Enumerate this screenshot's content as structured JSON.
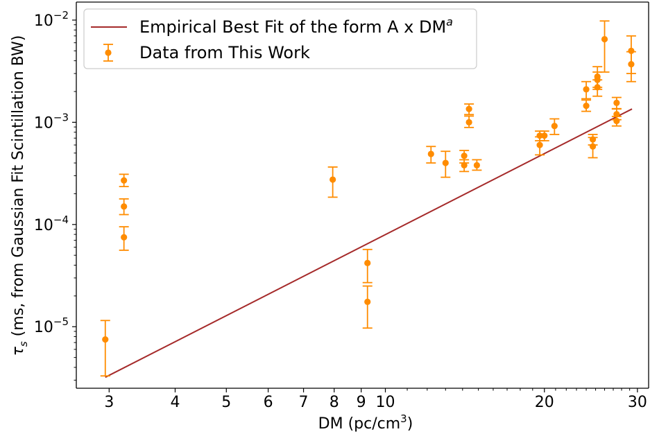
{
  "chart_data": {
    "type": "scatter",
    "xscale": "log",
    "yscale": "log",
    "xlim": [
      2.6,
      31.5
    ],
    "ylim": [
      2.5e-06,
      0.015
    ],
    "xticks": [
      3,
      4,
      5,
      6,
      7,
      8,
      9,
      10,
      20,
      30
    ],
    "xtick_labels": [
      "3",
      "4",
      "5",
      "6",
      "7",
      "8",
      "9",
      "10",
      "20",
      "30"
    ],
    "yticks": [
      1e-05,
      0.0001,
      0.001,
      0.01
    ],
    "ytick_labels": [
      {
        "base": "10",
        "exp": "−5"
      },
      {
        "base": "10",
        "exp": "−4"
      },
      {
        "base": "10",
        "exp": "−3"
      },
      {
        "base": "10",
        "exp": "−2"
      }
    ],
    "xlabel": {
      "main": "DM (pc/cm",
      "sup": "3",
      "tail": ")"
    },
    "ylabel": {
      "sym": "τ",
      "sub": "s",
      "rest": " (ms, from Gaussian Fit Scintillation BW)"
    },
    "legend": {
      "position": "upper-left",
      "fit_label": {
        "main": "Empirical Best Fit of the form A x DM",
        "sup": "a"
      },
      "data_label": "Data from This Work"
    },
    "colors": {
      "data": "#ff8c00",
      "fit": "#a52a2a"
    },
    "fit_line": {
      "x": [
        2.95,
        29.3
      ],
      "y": [
        3.2e-06,
        0.00135
      ]
    },
    "series": [
      {
        "name": "Data from This Work",
        "points": [
          {
            "x": 2.95,
            "y": 7.5e-06,
            "ylo": 3.3e-06,
            "yhi": 1.15e-05
          },
          {
            "x": 3.2,
            "y": 7.5e-05,
            "ylo": 5.6e-05,
            "yhi": 9.5e-05
          },
          {
            "x": 3.2,
            "y": 0.00015,
            "ylo": 0.000125,
            "yhi": 0.000178
          },
          {
            "x": 3.2,
            "y": 0.00027,
            "ylo": 0.000235,
            "yhi": 0.00031
          },
          {
            "x": 7.95,
            "y": 0.000275,
            "ylo": 0.000185,
            "yhi": 0.000365
          },
          {
            "x": 9.25,
            "y": 4.2e-05,
            "ylo": 2.7e-05,
            "yhi": 5.7e-05
          },
          {
            "x": 9.25,
            "y": 1.75e-05,
            "ylo": 9.7e-06,
            "yhi": 2.5e-05
          },
          {
            "x": 12.2,
            "y": 0.00049,
            "ylo": 0.0004,
            "yhi": 0.00058
          },
          {
            "x": 13.0,
            "y": 0.0004,
            "ylo": 0.00029,
            "yhi": 0.00052
          },
          {
            "x": 14.1,
            "y": 0.00047,
            "ylo": 0.0004,
            "yhi": 0.00053
          },
          {
            "x": 14.1,
            "y": 0.00038,
            "ylo": 0.00033,
            "yhi": 0.00043
          },
          {
            "x": 14.4,
            "y": 0.00135,
            "ylo": 0.00119,
            "yhi": 0.00151
          },
          {
            "x": 14.4,
            "y": 0.001,
            "ylo": 0.00089,
            "yhi": 0.00115
          },
          {
            "x": 14.9,
            "y": 0.00038,
            "ylo": 0.00034,
            "yhi": 0.00043
          },
          {
            "x": 19.6,
            "y": 0.00074,
            "ylo": 0.00066,
            "yhi": 0.00082
          },
          {
            "x": 19.6,
            "y": 0.0006,
            "ylo": 0.00048,
            "yhi": 0.00072
          },
          {
            "x": 20.0,
            "y": 0.00074,
            "ylo": 0.00066,
            "yhi": 0.00082
          },
          {
            "x": 20.9,
            "y": 0.00092,
            "ylo": 0.00076,
            "yhi": 0.00108
          },
          {
            "x": 24.0,
            "y": 0.0021,
            "ylo": 0.0017,
            "yhi": 0.0025
          },
          {
            "x": 24.0,
            "y": 0.00145,
            "ylo": 0.00128,
            "yhi": 0.00165
          },
          {
            "x": 24.7,
            "y": 0.00068,
            "ylo": 0.0006,
            "yhi": 0.00076
          },
          {
            "x": 24.7,
            "y": 0.00058,
            "ylo": 0.00045,
            "yhi": 0.00071
          },
          {
            "x": 25.2,
            "y": 0.0028,
            "ylo": 0.0021,
            "yhi": 0.0035
          },
          {
            "x": 25.2,
            "y": 0.0026,
            "ylo": 0.0022,
            "yhi": 0.0031
          },
          {
            "x": 25.2,
            "y": 0.0022,
            "ylo": 0.0018,
            "yhi": 0.0026
          },
          {
            "x": 26.0,
            "y": 0.0065,
            "ylo": 0.0031,
            "yhi": 0.0098
          },
          {
            "x": 27.4,
            "y": 0.00155,
            "ylo": 0.00135,
            "yhi": 0.00175
          },
          {
            "x": 27.4,
            "y": 0.0012,
            "ylo": 0.00106,
            "yhi": 0.00136
          },
          {
            "x": 27.4,
            "y": 0.00103,
            "ylo": 0.00092,
            "yhi": 0.00114
          },
          {
            "x": 29.2,
            "y": 0.005,
            "ylo": 0.003,
            "yhi": 0.007
          },
          {
            "x": 29.2,
            "y": 0.0037,
            "ylo": 0.0025,
            "yhi": 0.0049
          }
        ]
      }
    ]
  }
}
